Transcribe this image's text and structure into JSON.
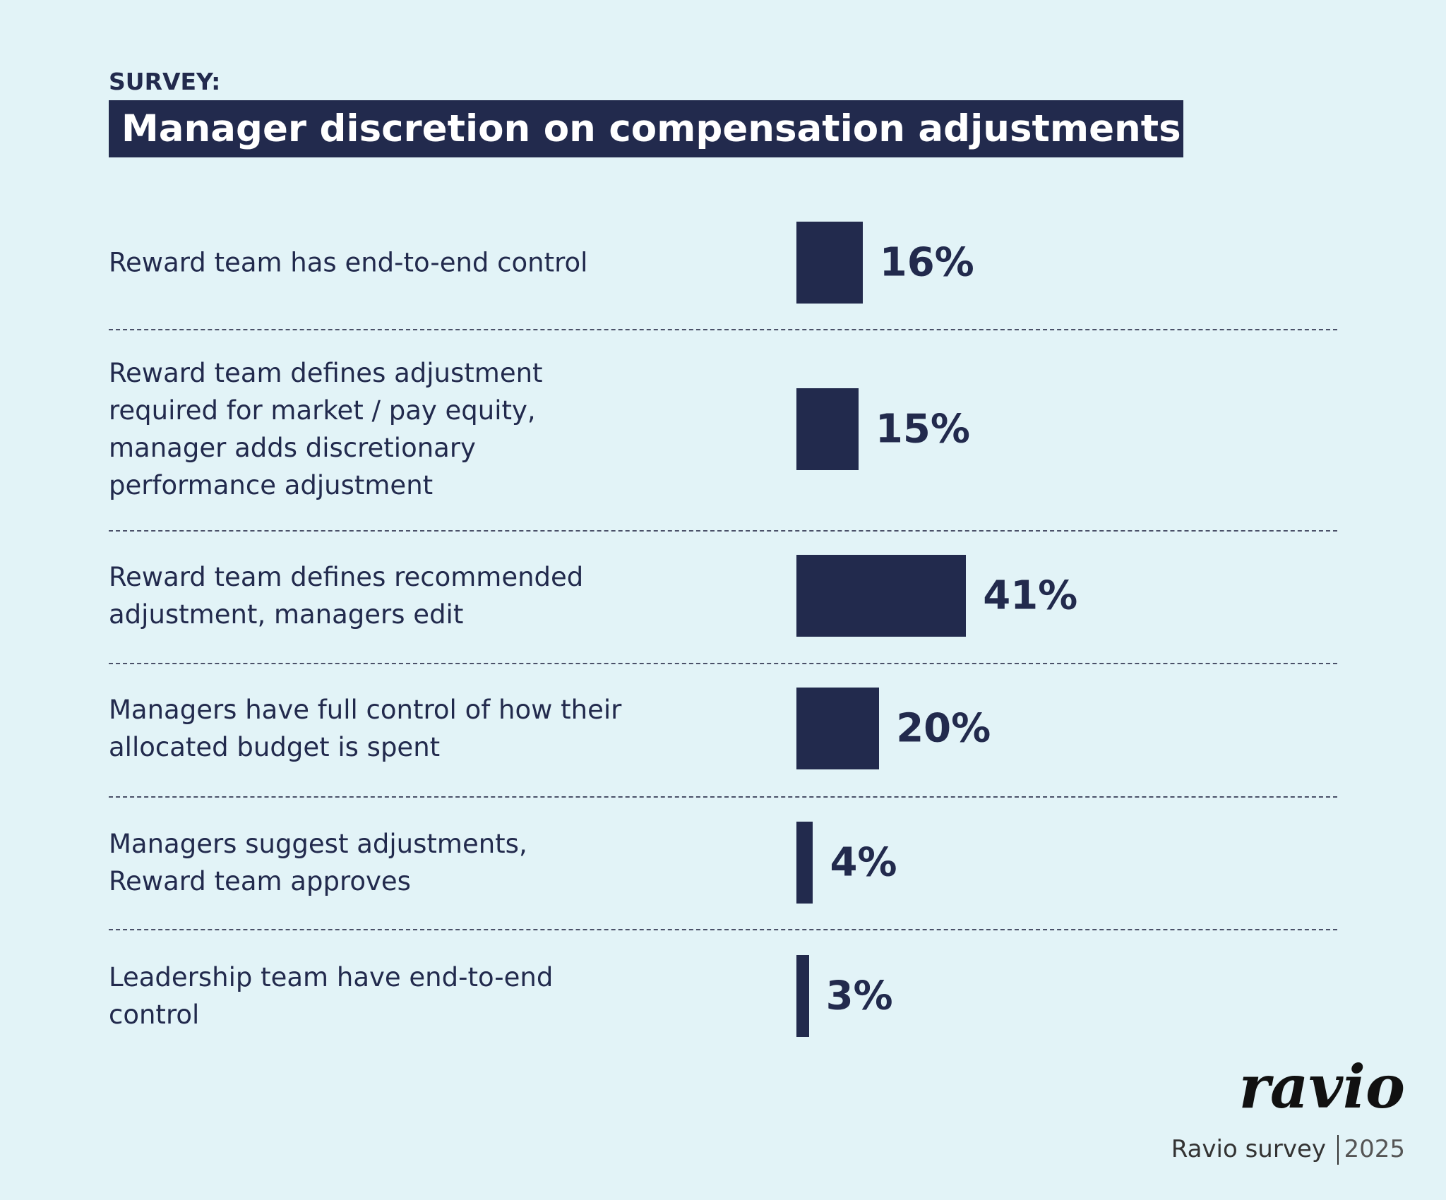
{
  "chart_data": {
    "type": "bar",
    "orientation": "horizontal",
    "kicker": "SURVEY:",
    "title": "Manager discretion on compensation adjustments",
    "categories": [
      "Reward team has end-to-end control",
      "Reward team defines adjustment\nrequired for market / pay equity,\nmanager adds discretionary\nperformance adjustment",
      "Reward team defines recommended\nadjustment, managers edit",
      "Managers have full control of how their\nallocated budget is spent",
      "Managers suggest adjustments,\nReward team approves",
      "Leadership team have end-to-end\ncontrol"
    ],
    "values": [
      16,
      15,
      41,
      20,
      4,
      3
    ],
    "value_labels": [
      "16%",
      "15%",
      "41%",
      "20%",
      "4%",
      "3%"
    ],
    "color": "#222a4d"
  },
  "footer": {
    "logo": "ravio",
    "source": "Ravio survey",
    "year": "2025"
  }
}
